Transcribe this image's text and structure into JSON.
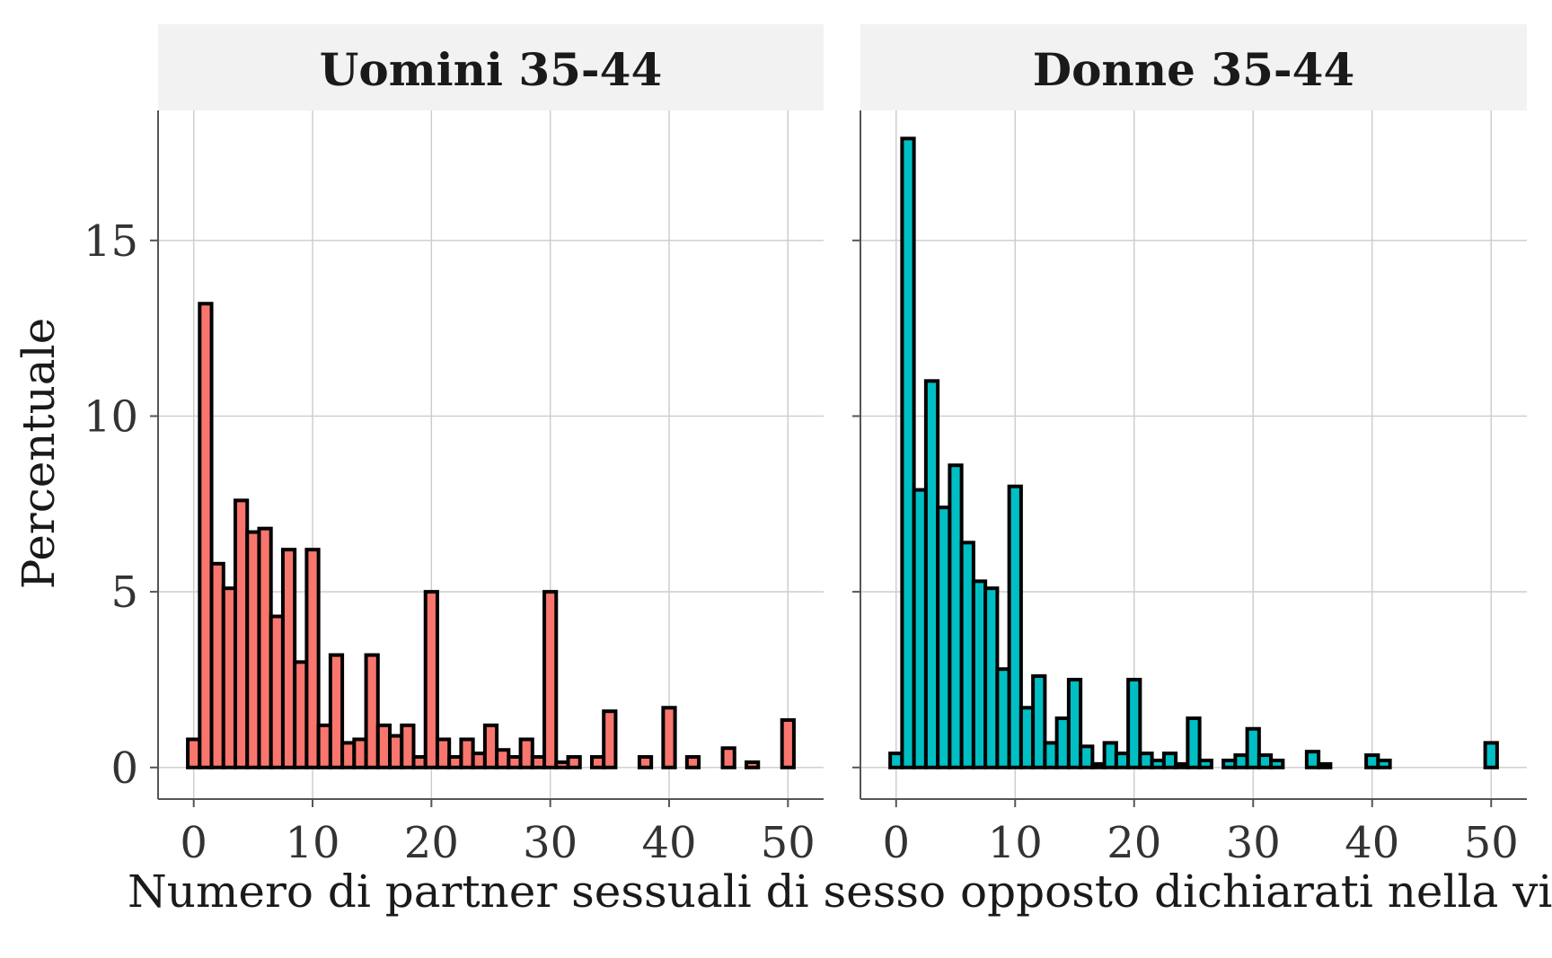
{
  "chart_data": {
    "type": "bar",
    "xlabel": "Numero di partner sessuali di sesso opposto dichiarati nella vita",
    "ylabel": "Percentuale",
    "xlim": [
      -3,
      53
    ],
    "ylim": [
      -0.9,
      18.7
    ],
    "x_ticks": [
      0,
      10,
      20,
      30,
      40,
      50
    ],
    "y_ticks": [
      0,
      5,
      10,
      15
    ],
    "grid": true,
    "legend": "none",
    "bin_width": 1,
    "panels": [
      {
        "title": "Uomini 35-44",
        "color": "#F8766D",
        "x": [
          0,
          1,
          2,
          3,
          4,
          5,
          6,
          7,
          8,
          9,
          10,
          11,
          12,
          13,
          14,
          15,
          16,
          17,
          18,
          19,
          20,
          21,
          22,
          23,
          24,
          25,
          26,
          27,
          28,
          29,
          30,
          31,
          32,
          34,
          35,
          38,
          40,
          42,
          45,
          47,
          50
        ],
        "values": [
          0.8,
          13.2,
          5.8,
          5.1,
          7.6,
          6.7,
          6.8,
          4.3,
          6.2,
          3.0,
          6.2,
          1.2,
          3.2,
          0.7,
          0.8,
          3.2,
          1.2,
          0.9,
          1.2,
          0.3,
          5.0,
          0.8,
          0.3,
          0.8,
          0.4,
          1.2,
          0.5,
          0.3,
          0.8,
          0.3,
          5.0,
          0.15,
          0.3,
          0.3,
          1.6,
          0.3,
          1.7,
          0.3,
          0.55,
          0.15,
          1.35
        ]
      },
      {
        "title": "Donne 35-44",
        "color": "#00BFC4",
        "x": [
          0,
          1,
          2,
          3,
          4,
          5,
          6,
          7,
          8,
          9,
          10,
          11,
          12,
          13,
          14,
          15,
          16,
          17,
          18,
          19,
          20,
          21,
          22,
          23,
          24,
          25,
          26,
          28,
          29,
          30,
          31,
          32,
          35,
          36,
          40,
          41,
          50
        ],
        "values": [
          0.4,
          17.9,
          7.9,
          11.0,
          7.4,
          8.6,
          6.4,
          5.3,
          5.1,
          2.8,
          8.0,
          1.7,
          2.6,
          0.7,
          1.4,
          2.5,
          0.6,
          0.1,
          0.7,
          0.4,
          2.5,
          0.4,
          0.2,
          0.4,
          0.1,
          1.4,
          0.2,
          0.2,
          0.35,
          1.1,
          0.35,
          0.2,
          0.45,
          0.1,
          0.35,
          0.2,
          0.7
        ]
      }
    ]
  }
}
